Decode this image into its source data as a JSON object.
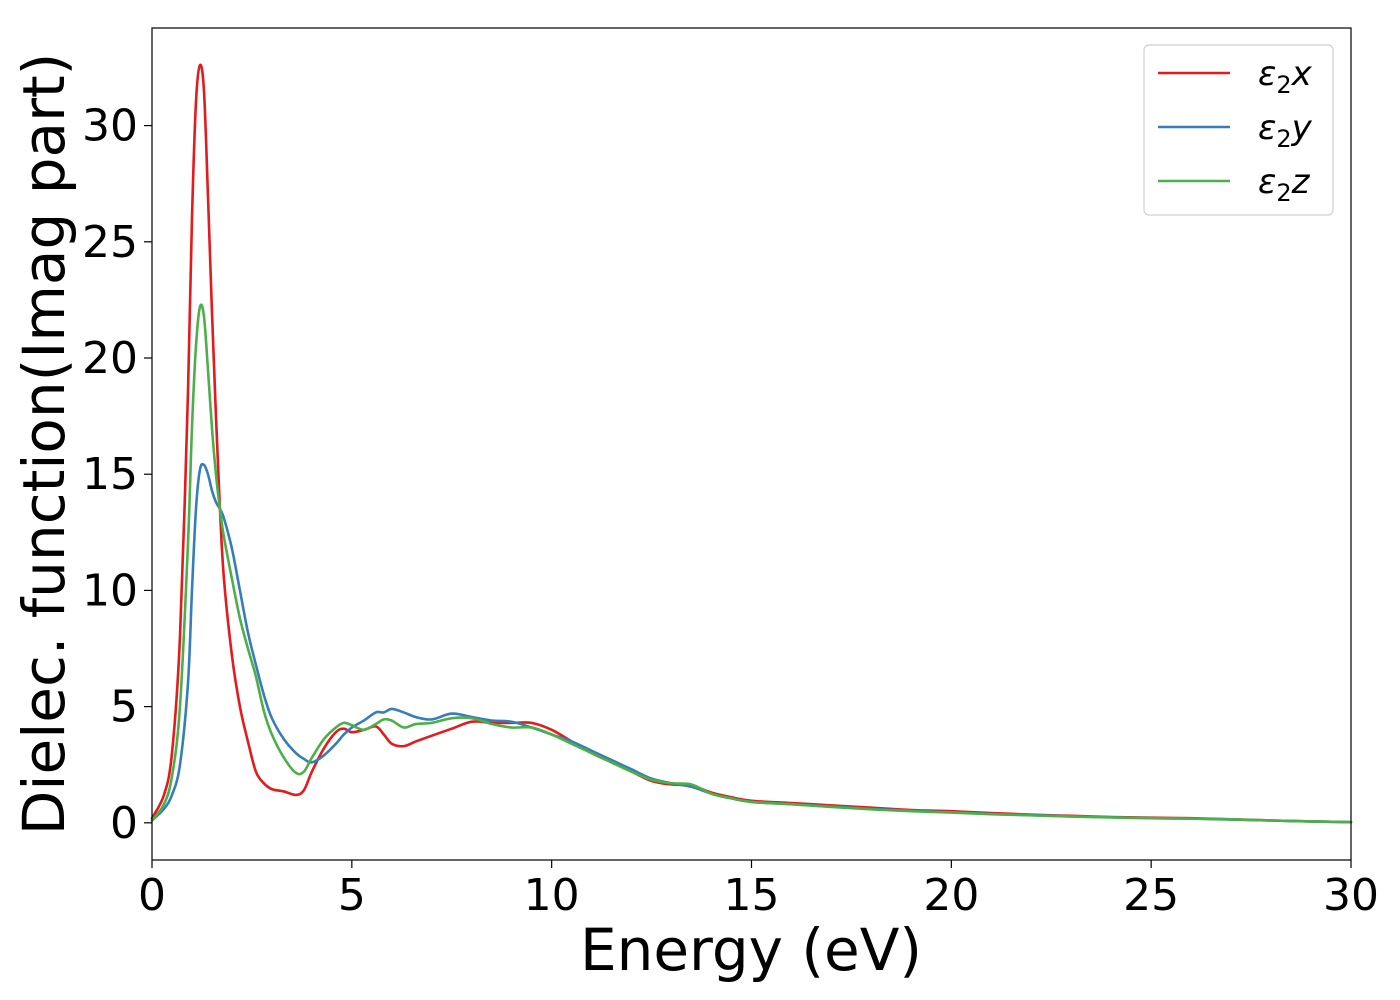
{
  "chart_data": {
    "type": "line",
    "xlabel": "Energy (eV)",
    "ylabel": "Dielec. function(Imag part)",
    "xlim": [
      0,
      30
    ],
    "ylim": [
      -1.6,
      34.2
    ],
    "xticks": [
      0,
      5,
      10,
      15,
      20,
      25,
      30
    ],
    "yticks": [
      0,
      5,
      10,
      15,
      20,
      25,
      30
    ],
    "grid": false,
    "legend_position": "top-right",
    "series": [
      {
        "name": "ε2x",
        "legend_base": "ε",
        "legend_sub": "2",
        "legend_tail": "x",
        "color": "#e41a1c",
        "x": [
          0,
          0.3,
          0.5,
          0.7,
          0.9,
          1.0,
          1.1,
          1.2,
          1.3,
          1.4,
          1.5,
          1.6,
          1.7,
          1.8,
          2.0,
          2.2,
          2.4,
          2.6,
          2.8,
          3.0,
          3.3,
          3.6,
          3.8,
          4.0,
          4.3,
          4.6,
          4.8,
          5.0,
          5.3,
          5.6,
          5.8,
          6.0,
          6.3,
          6.6,
          7.0,
          7.5,
          8.0,
          8.5,
          9.0,
          9.5,
          10.0,
          10.5,
          11.0,
          11.5,
          12.0,
          12.5,
          13.0,
          13.5,
          14.0,
          14.5,
          15.0,
          16.0,
          17.0,
          18.0,
          19.0,
          20.0,
          21.0,
          22.0,
          23.0,
          24.0,
          25.0,
          26.0,
          27.0,
          28.0,
          29.0,
          30.0
        ],
        "y": [
          0.2,
          1.2,
          3.0,
          8.0,
          18.5,
          26.0,
          31.0,
          32.6,
          31.5,
          27.0,
          22.0,
          17.5,
          13.5,
          10.5,
          7.2,
          5.0,
          3.5,
          2.2,
          1.7,
          1.45,
          1.35,
          1.2,
          1.4,
          2.2,
          3.2,
          3.9,
          4.05,
          3.9,
          4.0,
          4.15,
          3.8,
          3.4,
          3.3,
          3.5,
          3.75,
          4.05,
          4.35,
          4.3,
          4.3,
          4.3,
          4.0,
          3.5,
          3.0,
          2.6,
          2.2,
          1.8,
          1.65,
          1.6,
          1.3,
          1.1,
          0.95,
          0.85,
          0.75,
          0.65,
          0.55,
          0.5,
          0.42,
          0.35,
          0.3,
          0.25,
          0.22,
          0.2,
          0.15,
          0.1,
          0.06,
          0.03
        ]
      },
      {
        "name": "ε2y",
        "legend_base": "ε",
        "legend_sub": "2",
        "legend_tail": "y",
        "color": "#377eb8",
        "x": [
          0,
          0.3,
          0.5,
          0.7,
          0.9,
          1.0,
          1.1,
          1.2,
          1.3,
          1.4,
          1.5,
          1.6,
          1.7,
          1.8,
          2.0,
          2.2,
          2.4,
          2.6,
          2.8,
          3.0,
          3.3,
          3.6,
          3.8,
          4.0,
          4.3,
          4.6,
          4.8,
          5.0,
          5.3,
          5.6,
          5.8,
          6.0,
          6.3,
          6.6,
          7.0,
          7.5,
          8.0,
          8.5,
          9.0,
          9.5,
          10.0,
          10.5,
          11.0,
          11.5,
          12.0,
          12.5,
          13.0,
          13.5,
          14.0,
          14.5,
          15.0,
          16.0,
          17.0,
          18.0,
          19.0,
          20.0,
          21.0,
          22.0,
          23.0,
          24.0,
          25.0,
          26.0,
          27.0,
          28.0,
          29.0,
          30.0
        ],
        "y": [
          0.1,
          0.6,
          1.2,
          2.5,
          6.0,
          10.0,
          13.5,
          15.2,
          15.4,
          15.0,
          14.3,
          13.8,
          13.5,
          13.1,
          11.8,
          10.0,
          8.2,
          6.8,
          5.5,
          4.5,
          3.6,
          3.0,
          2.75,
          2.6,
          2.9,
          3.4,
          3.8,
          4.1,
          4.4,
          4.75,
          4.75,
          4.9,
          4.75,
          4.55,
          4.45,
          4.7,
          4.55,
          4.4,
          4.35,
          4.1,
          3.8,
          3.5,
          3.1,
          2.7,
          2.3,
          1.9,
          1.7,
          1.55,
          1.25,
          1.05,
          0.9,
          0.8,
          0.7,
          0.6,
          0.52,
          0.45,
          0.38,
          0.33,
          0.28,
          0.24,
          0.2,
          0.18,
          0.14,
          0.1,
          0.06,
          0.03
        ]
      },
      {
        "name": "ε2z",
        "legend_base": "ε",
        "legend_sub": "2",
        "legend_tail": "z",
        "color": "#4daf4a",
        "x": [
          0,
          0.3,
          0.5,
          0.7,
          0.9,
          1.0,
          1.1,
          1.2,
          1.3,
          1.4,
          1.5,
          1.6,
          1.7,
          1.8,
          2.0,
          2.2,
          2.4,
          2.6,
          2.8,
          3.0,
          3.3,
          3.6,
          3.8,
          4.0,
          4.3,
          4.6,
          4.8,
          5.0,
          5.3,
          5.6,
          5.8,
          6.0,
          6.3,
          6.6,
          7.0,
          7.5,
          8.0,
          8.5,
          9.0,
          9.5,
          10.0,
          10.5,
          11.0,
          11.5,
          12.0,
          12.5,
          13.0,
          13.5,
          14.0,
          14.5,
          15.0,
          16.0,
          17.0,
          18.0,
          19.0,
          20.0,
          21.0,
          22.0,
          23.0,
          24.0,
          25.0,
          26.0,
          27.0,
          28.0,
          29.0,
          30.0
        ],
        "y": [
          0.1,
          0.8,
          2.0,
          5.0,
          12.0,
          17.0,
          20.5,
          22.2,
          21.8,
          19.5,
          17.0,
          15.0,
          13.5,
          12.3,
          10.5,
          8.8,
          7.5,
          6.3,
          4.8,
          3.8,
          2.8,
          2.15,
          2.2,
          2.8,
          3.6,
          4.1,
          4.3,
          4.2,
          4.0,
          4.25,
          4.45,
          4.4,
          4.1,
          4.25,
          4.3,
          4.5,
          4.5,
          4.25,
          4.1,
          4.1,
          3.8,
          3.4,
          3.0,
          2.6,
          2.2,
          1.85,
          1.7,
          1.65,
          1.25,
          1.05,
          0.9,
          0.8,
          0.68,
          0.58,
          0.5,
          0.44,
          0.37,
          0.32,
          0.27,
          0.23,
          0.2,
          0.18,
          0.15,
          0.1,
          0.06,
          0.03
        ]
      }
    ]
  }
}
